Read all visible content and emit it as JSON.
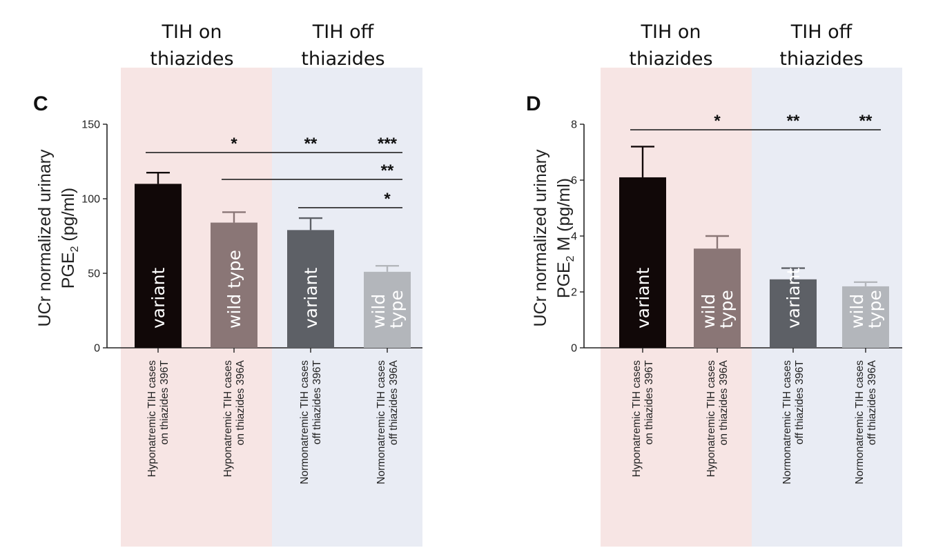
{
  "chart_data": [
    {
      "panel": "C",
      "type": "bar",
      "group_headers": [
        {
          "line1": "TIH on",
          "line2": "thiazides"
        },
        {
          "line1": "TIH off",
          "line2": "thiazides"
        }
      ],
      "ylabel_line1": "UCr normalized urinary",
      "ylabel_line2_base": "PGE",
      "ylabel_line2_sub": "2",
      "ylabel_line2_rest": " (pg/ml)",
      "ylim": [
        0,
        150
      ],
      "yticks": [
        0,
        50,
        100,
        150
      ],
      "categories": [
        {
          "line1": "Hyponatremic TIH cases",
          "line2": "on thiazides 396T"
        },
        {
          "line1": "Hyponatremic TIH cases",
          "line2": "on thiazides 396A"
        },
        {
          "line1": "Normonatremic TIH cases",
          "line2": "off thiazides 396T"
        },
        {
          "line1": "Normonatremic TIH cases",
          "line2": "off thiazides 396A"
        }
      ],
      "values": [
        110,
        84,
        79,
        51
      ],
      "errors": [
        7.5,
        7,
        8,
        4
      ],
      "bar_labels": [
        [
          "variant"
        ],
        [
          "wild type"
        ],
        [
          "variant"
        ],
        [
          "wild",
          "type"
        ]
      ],
      "bar_colors": [
        "#110808",
        "#8a7676",
        "#5d6066",
        "#b3b6bb"
      ],
      "group_shading": [
        "#f7e5e4",
        "#e9ecf4"
      ],
      "significance": [
        {
          "from": 0,
          "to": 3,
          "y": 131,
          "marks": [
            {
              "at": 1,
              "text": "*"
            },
            {
              "at": 2,
              "text": "**"
            },
            {
              "at": 3,
              "text": "***"
            }
          ]
        },
        {
          "from": 1,
          "to": 3,
          "y": 113,
          "marks": [
            {
              "at": 3,
              "text": "**"
            }
          ]
        },
        {
          "from": 2,
          "to": 3,
          "y": 94,
          "marks": [
            {
              "at": 3,
              "text": "*"
            }
          ]
        }
      ]
    },
    {
      "panel": "D",
      "type": "bar",
      "group_headers": [
        {
          "line1": "TIH on",
          "line2": "thiazides"
        },
        {
          "line1": "TIH off",
          "line2": "thiazides"
        }
      ],
      "ylabel_line1": "UCr normalized urinary",
      "ylabel_line2_base": "PGE",
      "ylabel_line2_sub": "2",
      "ylabel_line2_rest": " M (pg/ml)",
      "ylim": [
        0,
        8
      ],
      "yticks": [
        0,
        2,
        4,
        6,
        8
      ],
      "categories": [
        {
          "line1": "Hyponatremic TIH cases",
          "line2": "on thiazides 396T"
        },
        {
          "line1": "Hyponatremic TIH cases",
          "line2": "on thiazides 396A"
        },
        {
          "line1": "Normonatremic TIH cases",
          "line2": "off thiazides 396T"
        },
        {
          "line1": "Normonatremic TIH cases",
          "line2": "off thiazides 396A"
        }
      ],
      "values": [
        6.1,
        3.55,
        2.45,
        2.2
      ],
      "errors": [
        1.1,
        0.45,
        0.4,
        0.15
      ],
      "bar_labels": [
        [
          "variant"
        ],
        [
          "wild",
          "type"
        ],
        [
          "variant"
        ],
        [
          "wild",
          "type"
        ]
      ],
      "bar_colors": [
        "#110808",
        "#8a7676",
        "#5d6066",
        "#b3b6bb"
      ],
      "group_shading": [
        "#f7e5e4",
        "#e9ecf4"
      ],
      "significance": [
        {
          "from": 0,
          "to": 3,
          "y": 7.8,
          "marks": [
            {
              "at": 1,
              "text": "*"
            },
            {
              "at": 2,
              "text": "**"
            },
            {
              "at": 3,
              "text": "**"
            }
          ]
        }
      ]
    }
  ]
}
